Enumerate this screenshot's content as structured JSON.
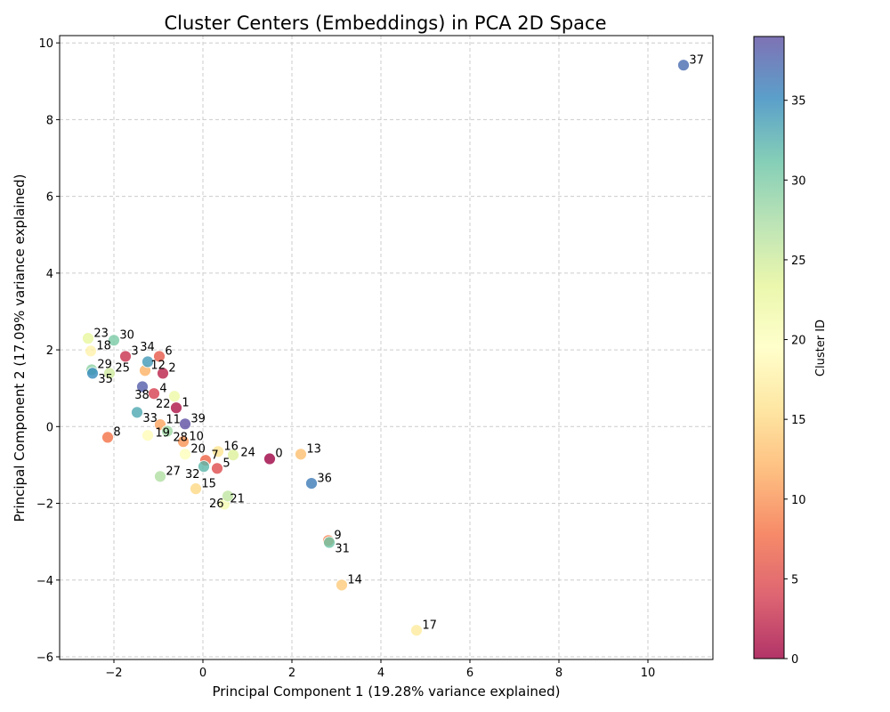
{
  "chart_data": {
    "type": "scatter",
    "title": "Cluster Centers (Embeddings) in PCA 2D Space",
    "xlabel": "Principal Component 1 (19.28% variance explained)",
    "ylabel": "Principal Component 2 (17.09% variance explained)",
    "xlim": [
      -3.22,
      11.46
    ],
    "ylim": [
      -6.07,
      10.19
    ],
    "xticks": [
      -2,
      0,
      2,
      4,
      6,
      8,
      10
    ],
    "yticks": [
      -6,
      -4,
      -2,
      0,
      2,
      4,
      6,
      8,
      10
    ],
    "grid": true,
    "colormap": "Spectral",
    "colormap_colors": [
      "#9e0142",
      "#d53e4f",
      "#f46d43",
      "#fdae61",
      "#fee08b",
      "#ffffbf",
      "#e6f598",
      "#abdda4",
      "#66c2a5",
      "#3288bd",
      "#5e4fa2"
    ],
    "colorbar": {
      "label": "Cluster ID",
      "range": [
        0,
        39
      ],
      "ticks": [
        0,
        5,
        10,
        15,
        20,
        25,
        30,
        35
      ]
    },
    "points": [
      {
        "id": 0,
        "x": 1.5,
        "y": -0.84
      },
      {
        "id": 1,
        "x": -0.6,
        "y": 0.49
      },
      {
        "id": 2,
        "x": -0.9,
        "y": 1.39
      },
      {
        "id": 3,
        "x": -1.74,
        "y": 1.83
      },
      {
        "id": 4,
        "x": -1.1,
        "y": 0.86
      },
      {
        "id": 5,
        "x": 0.32,
        "y": -1.09
      },
      {
        "id": 6,
        "x": -0.98,
        "y": 1.83
      },
      {
        "id": 7,
        "x": 0.06,
        "y": -0.88
      },
      {
        "id": 8,
        "x": -2.14,
        "y": -0.28
      },
      {
        "id": 9,
        "x": 2.82,
        "y": -2.97
      },
      {
        "id": 10,
        "x": -0.44,
        "y": -0.39
      },
      {
        "id": 11,
        "x": -0.96,
        "y": 0.05
      },
      {
        "id": 12,
        "x": -1.3,
        "y": 1.46
      },
      {
        "id": 13,
        "x": 2.2,
        "y": -0.72
      },
      {
        "id": 14,
        "x": 3.12,
        "y": -4.13
      },
      {
        "id": 15,
        "x": -0.16,
        "y": -1.62
      },
      {
        "id": 16,
        "x": 0.34,
        "y": -0.65
      },
      {
        "id": 17,
        "x": 4.8,
        "y": -5.31
      },
      {
        "id": 18,
        "x": -2.52,
        "y": 1.97
      },
      {
        "id": 19,
        "x": -1.24,
        "y": -0.23
      },
      {
        "id": 20,
        "x": -0.4,
        "y": -0.72
      },
      {
        "id": 21,
        "x": 0.48,
        "y": -2.02
      },
      {
        "id": 22,
        "x": -0.64,
        "y": 0.79
      },
      {
        "id": 23,
        "x": -2.58,
        "y": 2.3
      },
      {
        "id": 24,
        "x": 0.68,
        "y": -0.74
      },
      {
        "id": 25,
        "x": -2.1,
        "y": 1.39
      },
      {
        "id": 26,
        "x": 0.56,
        "y": -1.81
      },
      {
        "id": 27,
        "x": -0.96,
        "y": -1.3
      },
      {
        "id": 28,
        "x": -0.8,
        "y": -0.12
      },
      {
        "id": 29,
        "x": -2.5,
        "y": 1.48
      },
      {
        "id": 30,
        "x": -2.0,
        "y": 2.25
      },
      {
        "id": 31,
        "x": 2.84,
        "y": -3.02
      },
      {
        "id": 32,
        "x": 0.02,
        "y": -1.04
      },
      {
        "id": 33,
        "x": -1.48,
        "y": 0.37
      },
      {
        "id": 34,
        "x": -1.24,
        "y": 1.69
      },
      {
        "id": 35,
        "x": -2.48,
        "y": 1.39
      },
      {
        "id": 36,
        "x": 2.44,
        "y": -1.48
      },
      {
        "id": 37,
        "x": 10.8,
        "y": 9.42
      },
      {
        "id": 38,
        "x": -1.36,
        "y": 1.04
      },
      {
        "id": 39,
        "x": -0.4,
        "y": 0.07
      }
    ]
  }
}
